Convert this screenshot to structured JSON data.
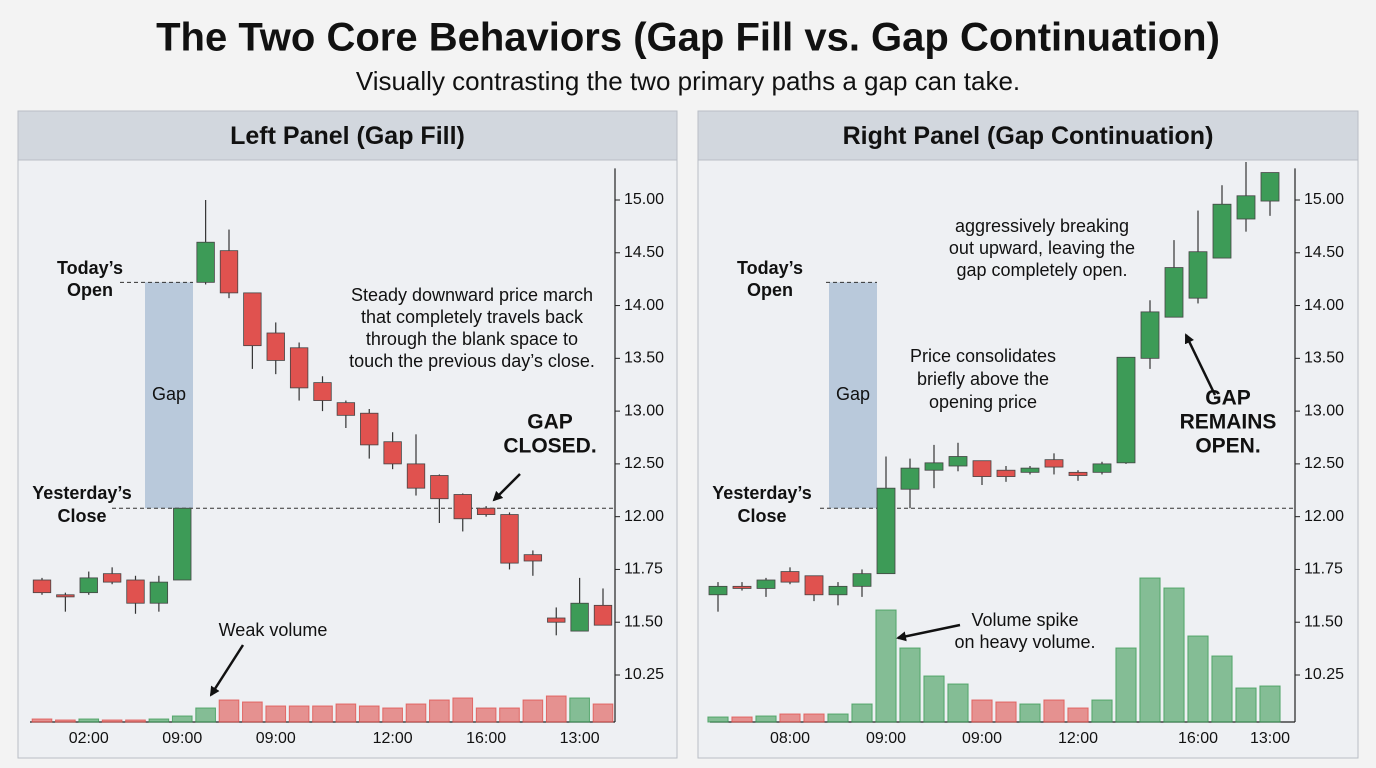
{
  "title": "The Two Core Behaviors (Gap Fill vs. Gap Continuation)",
  "subtitle": "Visually contrasting the two primary paths a gap can take.",
  "chart_data": [
    {
      "type": "candlestick",
      "title": "Left Panel (Gap Fill)",
      "categories": [
        null,
        null,
        "02:00",
        null,
        null,
        null,
        "09:00",
        null,
        null,
        null,
        "09:00",
        null,
        null,
        null,
        null,
        "12:00",
        null,
        null,
        null,
        "16:00",
        null,
        null,
        null,
        "13:00",
        null
      ],
      "open": [
        11.7,
        11.63,
        11.64,
        11.73,
        11.7,
        11.59,
        11.7,
        14.22,
        14.52,
        14.12,
        13.74,
        13.6,
        13.27,
        13.08,
        12.98,
        12.71,
        12.5,
        12.39,
        12.21,
        12.08,
        12.02,
        11.82,
        11.52,
        11.29,
        11.58
      ],
      "high": [
        11.71,
        11.64,
        11.74,
        11.76,
        11.72,
        11.72,
        12.08,
        15.0,
        14.72,
        14.12,
        13.84,
        13.65,
        13.33,
        13.1,
        13.02,
        12.8,
        12.78,
        12.4,
        12.22,
        12.1,
        12.04,
        11.84,
        11.57,
        11.71,
        11.66
      ],
      "low": [
        11.63,
        11.55,
        11.63,
        11.68,
        11.54,
        11.55,
        11.7,
        14.2,
        14.07,
        13.4,
        13.35,
        13.1,
        13.0,
        12.84,
        12.55,
        12.45,
        12.2,
        11.97,
        11.93,
        12.0,
        11.75,
        11.72,
        11.19,
        11.29,
        11.43
      ],
      "close": [
        11.64,
        11.62,
        11.71,
        11.69,
        11.59,
        11.69,
        12.08,
        14.6,
        14.12,
        13.62,
        13.48,
        13.22,
        13.1,
        12.96,
        12.68,
        12.5,
        12.27,
        12.17,
        11.99,
        12.02,
        11.78,
        11.79,
        11.5,
        11.59,
        11.43
      ],
      "volume": [
        3,
        2,
        3,
        2,
        2,
        3,
        6,
        14,
        22,
        20,
        16,
        16,
        16,
        18,
        16,
        14,
        18,
        22,
        24,
        14,
        14,
        22,
        26,
        24,
        18
      ],
      "up_color": "#3d9b57",
      "down_color": "#e0524f",
      "ylim": [
        10.25,
        15.3
      ],
      "yticks": [
        {
          "value": 10.25,
          "label": "10.25"
        },
        {
          "value": 11.5,
          "label": "11.50"
        },
        {
          "value": 11.75,
          "label": "11.75"
        },
        {
          "value": 12,
          "label": "12.00"
        },
        {
          "value": 12.5,
          "label": "12.50"
        },
        {
          "value": 13,
          "label": "13.00"
        },
        {
          "value": 13.5,
          "label": "13.50"
        },
        {
          "value": 14,
          "label": "14.00"
        },
        {
          "value": 14.5,
          "label": "14.50"
        },
        {
          "value": 15,
          "label": "15.00"
        }
      ],
      "levels": [
        {
          "lines": [
            "Today’s",
            "Open"
          ],
          "value": 14.22
        },
        {
          "lines": [
            "Yesterday’s",
            "Close"
          ],
          "value": 12.08
        }
      ],
      "gap_label": "Gap",
      "annotations": [
        {
          "lines": [
            "Steady downward price march",
            "that completely travels back",
            "through the blank space to",
            "touch the previous day’s close."
          ]
        },
        {
          "lines": [
            "GAP",
            "CLOSED."
          ]
        },
        {
          "lines": [
            "Weak volume"
          ]
        }
      ]
    },
    {
      "type": "candlestick",
      "title": "Right Panel (Gap Continuation)",
      "categories": [
        null,
        null,
        null,
        "08:00",
        null,
        null,
        null,
        "09:00",
        null,
        null,
        null,
        "09:00",
        null,
        null,
        null,
        "12:00",
        null,
        null,
        null,
        null,
        "16:00",
        null,
        null,
        "13:00"
      ],
      "open": [
        11.63,
        11.67,
        11.66,
        11.74,
        11.72,
        11.63,
        11.67,
        11.73,
        12.26,
        12.44,
        12.48,
        12.53,
        12.44,
        12.42,
        12.54,
        12.42,
        12.42,
        12.51,
        13.5,
        13.89,
        14.07,
        14.45,
        14.82,
        14.99
      ],
      "high": [
        11.69,
        11.69,
        11.71,
        11.76,
        11.72,
        11.69,
        11.75,
        12.57,
        12.55,
        12.68,
        12.7,
        12.53,
        12.48,
        12.48,
        12.6,
        12.44,
        12.52,
        13.51,
        14.05,
        14.62,
        14.9,
        15.14,
        15.36,
        15.26
      ],
      "low": [
        11.55,
        11.65,
        11.62,
        11.68,
        11.6,
        11.58,
        11.62,
        11.73,
        12.08,
        12.27,
        12.43,
        12.3,
        12.33,
        12.4,
        12.4,
        12.34,
        12.4,
        12.5,
        13.4,
        13.89,
        14.02,
        14.45,
        14.7,
        14.85
      ],
      "close": [
        11.67,
        11.66,
        11.7,
        11.69,
        11.63,
        11.67,
        11.73,
        12.27,
        12.46,
        12.51,
        12.57,
        12.38,
        12.38,
        12.46,
        12.47,
        12.39,
        12.5,
        13.51,
        13.94,
        14.36,
        14.51,
        14.96,
        15.04,
        15.26
      ],
      "volume": [
        5,
        5,
        6,
        8,
        8,
        8,
        18,
        112,
        74,
        46,
        38,
        22,
        20,
        18,
        22,
        14,
        22,
        74,
        144,
        134,
        86,
        66,
        34,
        36
      ],
      "up_color": "#3d9b57",
      "down_color": "#e0524f",
      "ylim": [
        10.25,
        15.3
      ],
      "yticks": [
        {
          "value": 10.25,
          "label": "10.25"
        },
        {
          "value": 11.5,
          "label": "11.50"
        },
        {
          "value": 11.75,
          "label": "11.75"
        },
        {
          "value": 12,
          "label": "12.00"
        },
        {
          "value": 12.5,
          "label": "12.50"
        },
        {
          "value": 13,
          "label": "13.00"
        },
        {
          "value": 13.5,
          "label": "13.50"
        },
        {
          "value": 14,
          "label": "14.00"
        },
        {
          "value": 14.5,
          "label": "14.50"
        },
        {
          "value": 15,
          "label": "15.00"
        }
      ],
      "levels": [
        {
          "lines": [
            "Today’s",
            "Open"
          ],
          "value": 14.22
        },
        {
          "lines": [
            "Yesterday’s",
            "Close"
          ],
          "value": 12.08
        }
      ],
      "gap_label": "Gap",
      "annotations": [
        {
          "lines": [
            "aggressively breaking",
            "out upward, leaving the",
            "gap completely open."
          ]
        },
        {
          "lines": [
            "Price consolidates",
            "briefly above the",
            "opening price"
          ]
        },
        {
          "lines": [
            "GAP",
            "REMAINS",
            "OPEN."
          ]
        },
        {
          "lines": [
            "Volume spike",
            "on heavy volume."
          ]
        }
      ]
    }
  ]
}
